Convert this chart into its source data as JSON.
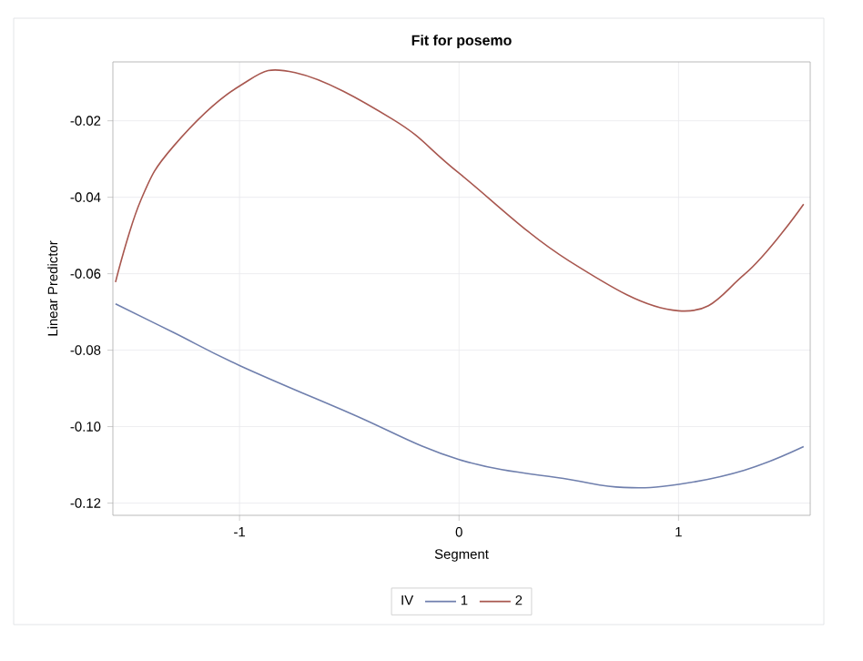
{
  "chart_data": {
    "type": "line",
    "title": "Fit for posemo",
    "xlabel": "Segment",
    "ylabel": "Linear Predictor",
    "legend_title": "IV",
    "xlim": [
      -1.577,
      1.6
    ],
    "ylim": [
      -0.1232,
      -0.0046
    ],
    "xticks": [
      -1,
      0,
      1
    ],
    "yticks": [
      {
        "value": -0.12,
        "label": "-0.12"
      },
      {
        "value": -0.1,
        "label": "-0.10"
      },
      {
        "value": -0.08,
        "label": "-0.08"
      },
      {
        "value": -0.06,
        "label": "-0.06"
      },
      {
        "value": -0.04,
        "label": "-0.04"
      },
      {
        "value": -0.02,
        "label": "-0.02"
      }
    ],
    "grid": true,
    "legend": "bottom",
    "line_style": "solid",
    "marker": "none",
    "series": [
      {
        "name": "1",
        "color": "#6f7fad",
        "x": [
          -1.565,
          -1.3,
          -1,
          -0.5,
          0,
          0.5,
          0.75,
          1,
          1.3,
          1.57
        ],
        "values": [
          -0.0679,
          -0.0754,
          -0.084,
          -0.0964,
          -0.1086,
          -0.1138,
          -0.1159,
          -0.1151,
          -0.1114,
          -0.1052
        ]
      },
      {
        "name": "2",
        "color": "#a8574f",
        "x": [
          -1.565,
          -1.45,
          -1.3,
          -1,
          -0.747,
          -0.3,
          0,
          0.5,
          1,
          1.3,
          1.57
        ],
        "values": [
          -0.0622,
          -0.0408,
          -0.0266,
          -0.0109,
          -0.0074,
          -0.0197,
          -0.0337,
          -0.0566,
          -0.0697,
          -0.0602,
          -0.0418
        ]
      }
    ]
  }
}
